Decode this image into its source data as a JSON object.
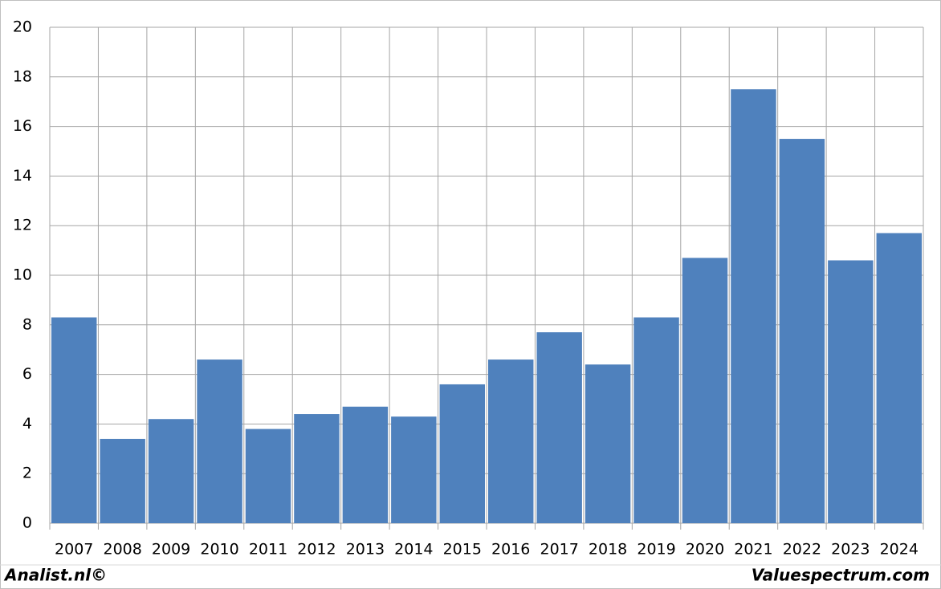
{
  "chart_data": {
    "type": "bar",
    "categories": [
      "2007",
      "2008",
      "2009",
      "2010",
      "2011",
      "2012",
      "2013",
      "2014",
      "2015",
      "2016",
      "2017",
      "2018",
      "2019",
      "2020",
      "2021",
      "2022",
      "2023",
      "2024"
    ],
    "values": [
      8.3,
      3.4,
      4.2,
      6.6,
      3.8,
      4.4,
      4.7,
      4.3,
      5.6,
      6.6,
      7.7,
      6.4,
      8.3,
      10.7,
      17.5,
      15.5,
      10.6,
      11.7
    ],
    "color": "#4f81bd",
    "ylim": [
      0,
      20
    ],
    "yticks": [
      0,
      2,
      4,
      6,
      8,
      10,
      12,
      14,
      16,
      18,
      20
    ],
    "grid": true
  },
  "footer": {
    "left": "Analist.nl©",
    "right": "Valuespectrum.com"
  }
}
